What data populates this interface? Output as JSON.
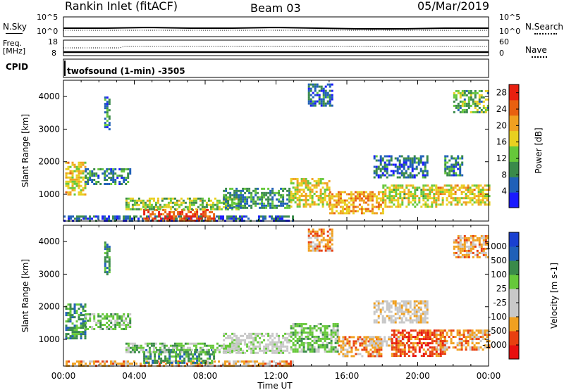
{
  "header": {
    "station": "Rankin Inlet (fitACF)",
    "beam": "Beam 03",
    "date": "05/Mar/2019"
  },
  "top_panels": {
    "nsky_label": "N.Sky",
    "nsky_ticks": [
      "10^5",
      "10^0"
    ],
    "nsearch_label": "N.Search",
    "nsearch_ticks": [
      "10^5",
      "10^0"
    ],
    "freq_label_1": "Freq.",
    "freq_label_2": "[MHz]",
    "freq_ticks": [
      "18",
      "8"
    ],
    "nave_label": "Nave",
    "nave_ticks": [
      "60",
      "0"
    ],
    "cpid_label": "CPID",
    "cpid_text": "twofsound (1-min) -3505"
  },
  "colors": {
    "power": [
      "#1a1aff",
      "#2060b8",
      "#3a8a4a",
      "#66c83a",
      "#e8d020",
      "#f0a020",
      "#e86010",
      "#e82010"
    ],
    "velocity": [
      "#e81010",
      "#e84010",
      "#f0a020",
      "#c8c8c8",
      "#c8c8c8",
      "#66c83a",
      "#3a8a4a",
      "#2060b8",
      "#1a40d0"
    ]
  },
  "chart_data": [
    {
      "type": "heatmap",
      "title": "",
      "xlabel": "Time UT",
      "ylabel": "Slant Range [km]",
      "x_ticks": [
        "00:00",
        "04:00",
        "08:00",
        "12:00",
        "16:00",
        "20:00",
        "00:00"
      ],
      "xlim_hours": [
        0,
        24
      ],
      "y_ticks": [
        1000,
        2000,
        3000,
        4000
      ],
      "ylim": [
        180,
        4500
      ],
      "colorbar_label": "Power [dB]",
      "colorbar_ticks": [
        4,
        8,
        12,
        16,
        20,
        24,
        28
      ],
      "colorbar_range": [
        0,
        30
      ],
      "regions": [
        {
          "t": [
            0.1,
            1.2
          ],
          "r": [
            1000,
            2000
          ],
          "level": 18
        },
        {
          "t": [
            1.2,
            3.8
          ],
          "r": [
            1300,
            1800
          ],
          "level": 8
        },
        {
          "t": [
            0.0,
            13.0
          ],
          "r": [
            200,
            350
          ],
          "level": 6
        },
        {
          "t": [
            4.5,
            8.5
          ],
          "r": [
            200,
            550
          ],
          "level": 26
        },
        {
          "t": [
            3.5,
            10.0
          ],
          "r": [
            550,
            900
          ],
          "level": 14
        },
        {
          "t": [
            9.0,
            12.8
          ],
          "r": [
            600,
            1200
          ],
          "level": 9
        },
        {
          "t": [
            12.8,
            15.0
          ],
          "r": [
            600,
            1500
          ],
          "level": 17
        },
        {
          "t": [
            15.0,
            18.0
          ],
          "r": [
            400,
            1100
          ],
          "level": 20
        },
        {
          "t": [
            18.0,
            21.0
          ],
          "r": [
            600,
            1300
          ],
          "level": 16
        },
        {
          "t": [
            21.0,
            24.0
          ],
          "r": [
            700,
            1300
          ],
          "level": 18
        },
        {
          "t": [
            13.8,
            15.2
          ],
          "r": [
            3700,
            4400
          ],
          "level": 7
        },
        {
          "t": [
            22.0,
            24.0
          ],
          "r": [
            3500,
            4200
          ],
          "level": 12
        },
        {
          "t": [
            2.3,
            2.6
          ],
          "r": [
            3000,
            4000
          ],
          "level": 8
        },
        {
          "t": [
            17.5,
            20.5
          ],
          "r": [
            1500,
            2200
          ],
          "level": 7
        },
        {
          "t": [
            21.5,
            22.5
          ],
          "r": [
            1600,
            2200
          ],
          "level": 8
        }
      ]
    },
    {
      "type": "heatmap",
      "title": "",
      "xlabel": "Time UT",
      "ylabel": "Slant Range [km]",
      "x_ticks": [
        "00:00",
        "04:00",
        "08:00",
        "12:00",
        "16:00",
        "20:00",
        "00:00"
      ],
      "xlim_hours": [
        0,
        24
      ],
      "y_ticks": [
        1000,
        2000,
        3000,
        4000
      ],
      "ylim": [
        180,
        4500
      ],
      "colorbar_label": "Velocity [m s-1]",
      "colorbar_ticks": [
        "1000",
        "500",
        "100",
        "25",
        "-25",
        "-100",
        "-500",
        "-1000"
      ],
      "regions": [
        {
          "t": [
            0.1,
            1.2
          ],
          "r": [
            1000,
            2100
          ],
          "level": 6
        },
        {
          "t": [
            1.2,
            3.8
          ],
          "r": [
            1300,
            1800
          ],
          "level": 5
        },
        {
          "t": [
            0.0,
            13.0
          ],
          "r": [
            200,
            350
          ],
          "level": 2
        },
        {
          "t": [
            4.5,
            8.5
          ],
          "r": [
            250,
            700
          ],
          "level": 6
        },
        {
          "t": [
            3.5,
            10.0
          ],
          "r": [
            600,
            900
          ],
          "level": 5
        },
        {
          "t": [
            9.0,
            12.8
          ],
          "r": [
            600,
            1200
          ],
          "level": 4
        },
        {
          "t": [
            12.8,
            15.5
          ],
          "r": [
            600,
            1500
          ],
          "level": 5
        },
        {
          "t": [
            15.5,
            18.0
          ],
          "r": [
            500,
            1100
          ],
          "level": 2
        },
        {
          "t": [
            17.0,
            19.5
          ],
          "r": [
            800,
            1100
          ],
          "level": 3
        },
        {
          "t": [
            18.5,
            21.5
          ],
          "r": [
            500,
            1300
          ],
          "level": 1
        },
        {
          "t": [
            21.0,
            24.0
          ],
          "r": [
            700,
            1300
          ],
          "level": 2
        },
        {
          "t": [
            13.8,
            15.2
          ],
          "r": [
            3700,
            4400
          ],
          "level": 2
        },
        {
          "t": [
            22.0,
            24.0
          ],
          "r": [
            3500,
            4200
          ],
          "level": 2
        },
        {
          "t": [
            2.3,
            2.6
          ],
          "r": [
            3000,
            4000
          ],
          "level": 6
        },
        {
          "t": [
            17.5,
            20.5
          ],
          "r": [
            1500,
            2200
          ],
          "level": 3
        }
      ]
    }
  ]
}
